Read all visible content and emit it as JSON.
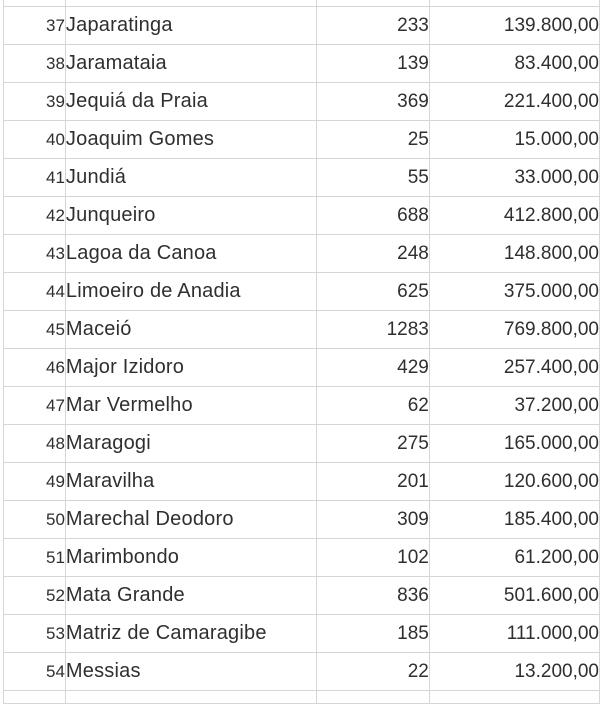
{
  "colors": {
    "gridline": "#d6d6d6",
    "text": "#2f2f2f",
    "background": "#ffffff"
  },
  "table": {
    "rows": [
      {
        "n": "37",
        "name": "Japaratinga",
        "count": "233",
        "value": "139.800,00"
      },
      {
        "n": "38",
        "name": "Jaramataia",
        "count": "139",
        "value": "83.400,00"
      },
      {
        "n": "39",
        "name": "Jequiá da Praia",
        "count": "369",
        "value": "221.400,00"
      },
      {
        "n": "40",
        "name": "Joaquim Gomes",
        "count": "25",
        "value": "15.000,00"
      },
      {
        "n": "41",
        "name": "Jundiá",
        "count": "55",
        "value": "33.000,00"
      },
      {
        "n": "42",
        "name": "Junqueiro",
        "count": "688",
        "value": "412.800,00"
      },
      {
        "n": "43",
        "name": "Lagoa da Canoa",
        "count": "248",
        "value": "148.800,00"
      },
      {
        "n": "44",
        "name": "Limoeiro de Anadia",
        "count": "625",
        "value": "375.000,00"
      },
      {
        "n": "45",
        "name": "Maceió",
        "count": "1283",
        "value": "769.800,00"
      },
      {
        "n": "46",
        "name": "Major Izidoro",
        "count": "429",
        "value": "257.400,00"
      },
      {
        "n": "47",
        "name": "Mar Vermelho",
        "count": "62",
        "value": "37.200,00"
      },
      {
        "n": "48",
        "name": "Maragogi",
        "count": "275",
        "value": "165.000,00"
      },
      {
        "n": "49",
        "name": "Maravilha",
        "count": "201",
        "value": "120.600,00"
      },
      {
        "n": "50",
        "name": "Marechal Deodoro",
        "count": "309",
        "value": "185.400,00"
      },
      {
        "n": "51",
        "name": "Marimbondo",
        "count": "102",
        "value": "61.200,00"
      },
      {
        "n": "52",
        "name": "Mata Grande",
        "count": "836",
        "value": "501.600,00"
      },
      {
        "n": "53",
        "name": "Matriz de Camaragibe",
        "count": "185",
        "value": "111.000,00"
      },
      {
        "n": "54",
        "name": "Messias",
        "count": "22",
        "value": "13.200,00"
      }
    ]
  }
}
